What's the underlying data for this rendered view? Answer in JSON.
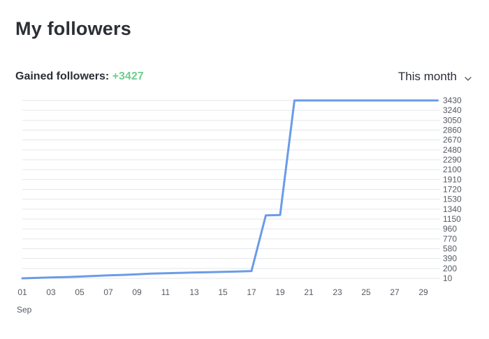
{
  "header": {
    "title": "My followers"
  },
  "summary": {
    "gained_label": "Gained followers: ",
    "gained_value": "+3427"
  },
  "period": {
    "selected": "This month"
  },
  "colors": {
    "line": "#6b9be8",
    "gain": "#6ccf8e",
    "grid": "#e4e6ea"
  },
  "chart_data": {
    "type": "line",
    "xlabel": "Sep",
    "x_ticks": [
      "01",
      "03",
      "05",
      "07",
      "09",
      "11",
      "13",
      "15",
      "17",
      "19",
      "21",
      "23",
      "25",
      "27",
      "29"
    ],
    "y_ticks": [
      10,
      200,
      390,
      580,
      770,
      960,
      1150,
      1340,
      1530,
      1720,
      1910,
      2100,
      2290,
      2480,
      2670,
      2860,
      3050,
      3240,
      3430
    ],
    "ylim": [
      10,
      3430
    ],
    "xlim": [
      1,
      30
    ],
    "series": [
      {
        "x": [
          1,
          2,
          3,
          4,
          5,
          6,
          7,
          8,
          9,
          10,
          11,
          12,
          13,
          14,
          15,
          16,
          17,
          18,
          19,
          20,
          21,
          22,
          23,
          24,
          25,
          26,
          27,
          28,
          29,
          30
        ],
        "y": [
          10,
          18,
          26,
          34,
          44,
          56,
          66,
          76,
          88,
          100,
          108,
          114,
          122,
          128,
          134,
          140,
          150,
          1220,
          1228,
          3430,
          3430,
          3430,
          3430,
          3430,
          3430,
          3430,
          3430,
          3430,
          3430,
          3430
        ]
      }
    ],
    "grid": true,
    "y_axis_side": "right"
  }
}
